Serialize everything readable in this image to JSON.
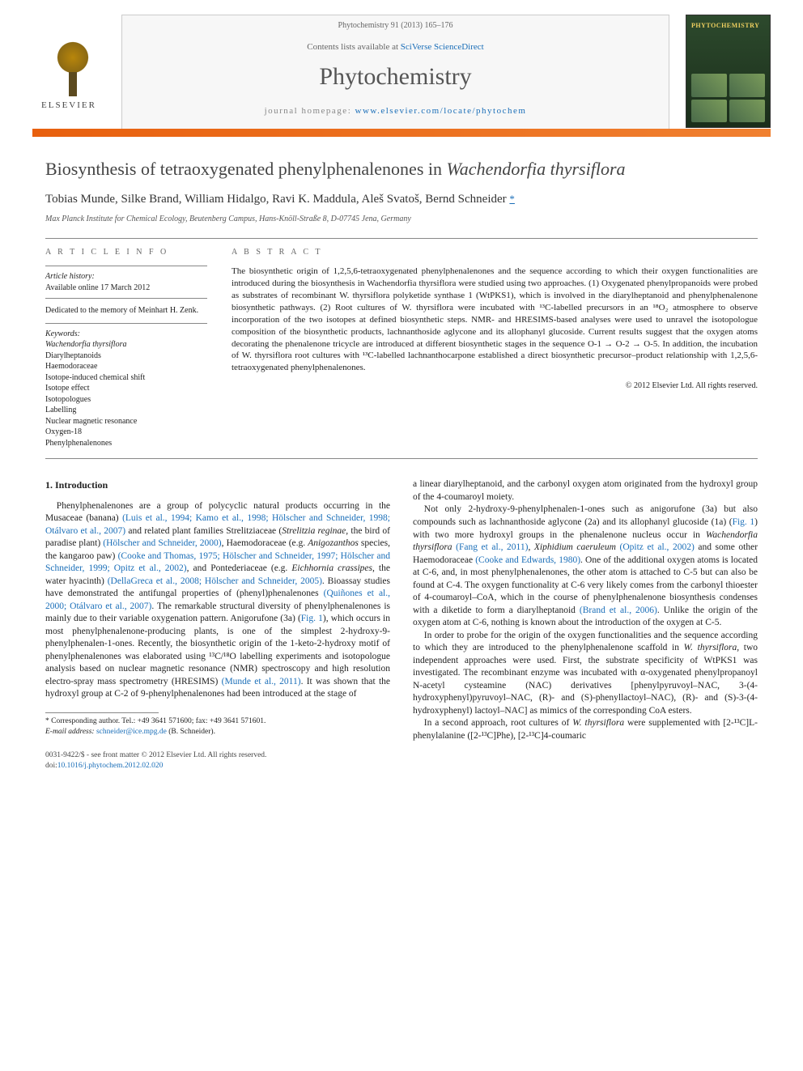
{
  "header": {
    "citation": "Phytochemistry 91 (2013) 165–176",
    "contents_prefix": "Contents lists available at ",
    "contents_link": "SciVerse ScienceDirect",
    "journal": "Phytochemistry",
    "homepage_prefix": "journal homepage: ",
    "homepage_url": "www.elsevier.com/locate/phytochem",
    "publisher": "ELSEVIER",
    "cover_title": "PHYTOCHEMISTRY"
  },
  "title_html": "Biosynthesis of tetraoxygenated phenylphenalenones in <em>Wachendorfia thyrsiflora</em>",
  "authors_line": "Tobias Munde, Silke Brand, William Hidalgo, Ravi K. Maddula, Aleš Svatoš, Bernd Schneider",
  "corr_mark": "*",
  "affiliation": "Max Planck Institute for Chemical Ecology, Beutenberg Campus, Hans-Knöll-Straße 8, D-07745 Jena, Germany",
  "info": {
    "heading": "A R T I C L E   I N F O",
    "history_head": "Article history:",
    "history": "Available online 17 March 2012",
    "dedication": "Dedicated to the memory of Meinhart H. Zenk.",
    "kw_head": "Keywords:",
    "keywords": [
      "Wachendorfia thyrsiflora",
      "Diarylheptanoids",
      "Haemodoraceae",
      "Isotope-induced chemical shift",
      "Isotope effect",
      "Isotopologues",
      "Labelling",
      "Nuclear magnetic resonance",
      "Oxygen-18",
      "Phenylphenalenones"
    ]
  },
  "abstract": {
    "heading": "A B S T R A C T",
    "text": "The biosynthetic origin of 1,2,5,6-tetraoxygenated phenylphenalenones and the sequence according to which their oxygen functionalities are introduced during the biosynthesis in Wachendorfia thyrsiflora were studied using two approaches. (1) Oxygenated phenylpropanoids were probed as substrates of recombinant W. thyrsiflora polyketide synthase 1 (WtPKS1), which is involved in the diarylheptanoid and phenylphenalenone biosynthetic pathways. (2) Root cultures of W. thyrsiflora were incubated with ¹³C-labelled precursors in an ¹⁸O₂ atmosphere to observe incorporation of the two isotopes at defined biosynthetic steps. NMR- and HRESIMS-based analyses were used to unravel the isotopologue composition of the biosynthetic products, lachnanthoside aglycone and its allophanyl glucoside. Current results suggest that the oxygen atoms decorating the phenalenone tricycle are introduced at different biosynthetic stages in the sequence O-1 → O-2 → O-5. In addition, the incubation of W. thyrsiflora root cultures with ¹³C-labelled lachnanthocarpone established a direct biosynthetic precursor–product relationship with 1,2,5,6-tetraoxygenated phenylphenalenones.",
    "copyright": "© 2012 Elsevier Ltd. All rights reserved."
  },
  "section1": {
    "heading": "1. Introduction",
    "p1": "Phenylphenalenones are a group of polycyclic natural products occurring in the Musaceae (banana) (Luis et al., 1994; Kamo et al., 1998; Hölscher and Schneider, 1998; Otálvaro et al., 2007) and related plant families Strelitziaceae (Strelitzia reginae, the bird of paradise plant) (Hölscher and Schneider, 2000), Haemodoraceae (e.g. Anigozanthos species, the kangaroo paw) (Cooke and Thomas, 1975; Hölscher and Schneider, 1997; Hölscher and Schneider, 1999; Opitz et al., 2002), and Pontederiaceae (e.g. Eichhornia crassipes, the water hyacinth) (DellaGreca et al., 2008; Hölscher and Schneider, 2005). Bioassay studies have demonstrated the antifungal properties of (phenyl)phenalenones (Quiñones et al., 2000; Otálvaro et al., 2007). The remarkable structural diversity of phenylphenalenones is mainly due to their variable oxygenation pattern. Anigorufone (3a) (Fig. 1), which occurs in most phenylphenalenone-producing plants, is one of the simplest 2-hydroxy-9-phenylphenalen-1-ones. Recently, the biosynthetic origin of the 1-keto-2-hydroxy motif of phenylphenalenones was elaborated using ¹³C/¹⁸O labelling experiments and isotopologue analysis based on nuclear magnetic resonance (NMR) spectroscopy and high resolution electro-spray mass spectrometry (HRESIMS) (Munde et al., 2011). It was shown that the hydroxyl group at C-2 of 9-phenylphenalenones had been introduced at the stage of",
    "p2": "a linear diarylheptanoid, and the carbonyl oxygen atom originated from the hydroxyl group of the 4-coumaroyl moiety.",
    "p3": "Not only 2-hydroxy-9-phenylphenalen-1-ones such as anigorufone (3a) but also compounds such as lachnanthoside aglycone (2a) and its allophanyl glucoside (1a) (Fig. 1) with two more hydroxyl groups in the phenalenone nucleus occur in Wachendorfia thyrsiflora (Fang et al., 2011), Xiphidium caeruleum (Opitz et al., 2002) and some other Haemodoraceae (Cooke and Edwards, 1980). One of the additional oxygen atoms is located at C-6, and, in most phenylphenalenones, the other atom is attached to C-5 but can also be found at C-4. The oxygen functionality at C-6 very likely comes from the carbonyl thioester of 4-coumaroyl–CoA, which in the course of phenylphenalenone biosynthesis condenses with a diketide to form a diarylheptanoid (Brand et al., 2006). Unlike the origin of the oxygen atom at C-6, nothing is known about the introduction of the oxygen at C-5.",
    "p4": "In order to probe for the origin of the oxygen functionalities and the sequence according to which they are introduced to the phenylphenalenone scaffold in W. thyrsiflora, two independent approaches were used. First, the substrate specificity of WtPKS1 was investigated. The recombinant enzyme was incubated with α-oxygenated phenylpropanoyl N-acetyl cysteamine (NAC) derivatives [phenylpyruvoyl–NAC, 3-(4-hydroxyphenyl)pyruvoyl–NAC, (R)- and (S)-phenyllactoyl–NAC), (R)- and (S)-3-(4-hydroxyphenyl) lactoyl–NAC] as mimics of the corresponding CoA esters.",
    "p5": "In a second approach, root cultures of W. thyrsiflora were supplemented with [2-¹³C]L-phenylalanine ([2-¹³C]Phe), [2-¹³C]4-coumaric"
  },
  "footnote": {
    "corr": "* Corresponding author. Tel.: +49 3641 571600; fax: +49 3641 571601.",
    "email_label": "E-mail address:",
    "email": "schneider@ice.mpg.de",
    "email_who": "(B. Schneider)."
  },
  "footer": {
    "issn": "0031-9422/$ - see front matter © 2012 Elsevier Ltd. All rights reserved.",
    "doi_label": "doi:",
    "doi": "10.1016/j.phytochem.2012.02.020"
  },
  "colors": {
    "accent_orange": "#e8600e",
    "link_blue": "#1a6eb8",
    "text": "#222222",
    "muted": "#666666"
  }
}
